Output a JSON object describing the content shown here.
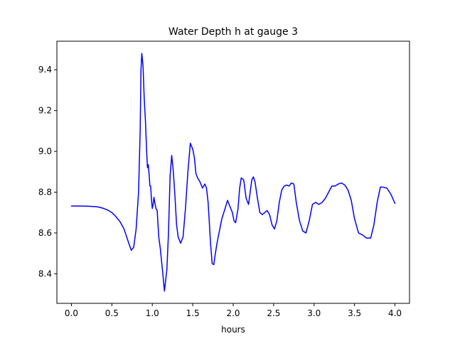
{
  "chart_data": {
    "type": "line",
    "title": "Water Depth h at gauge 3",
    "xlabel": "hours",
    "ylabel": "",
    "xlim": [
      -0.18,
      4.18
    ],
    "ylim": [
      8.255,
      9.54
    ],
    "xticks": [
      0.0,
      0.5,
      1.0,
      1.5,
      2.0,
      2.5,
      3.0,
      3.5,
      4.0
    ],
    "xtick_labels": [
      "0.0",
      "0.5",
      "1.0",
      "1.5",
      "2.0",
      "2.5",
      "3.0",
      "3.5",
      "4.0"
    ],
    "yticks": [
      8.4,
      8.6,
      8.8,
      9.0,
      9.2,
      9.4
    ],
    "ytick_labels": [
      "8.4",
      "8.6",
      "8.8",
      "9.0",
      "9.2",
      "9.4"
    ],
    "grid": false,
    "series": [
      {
        "color": "#0000ff",
        "x": [
          0.0,
          0.1,
          0.2,
          0.3,
          0.35,
          0.4,
          0.45,
          0.5,
          0.55,
          0.6,
          0.65,
          0.7,
          0.74,
          0.77,
          0.8,
          0.83,
          0.85,
          0.86,
          0.87,
          0.885,
          0.9,
          0.915,
          0.93,
          0.94,
          0.95,
          0.96,
          0.97,
          0.98,
          0.99,
          1.0,
          1.01,
          1.02,
          1.03,
          1.045,
          1.06,
          1.08,
          1.1,
          1.13,
          1.15,
          1.18,
          1.2,
          1.22,
          1.24,
          1.26,
          1.28,
          1.3,
          1.32,
          1.35,
          1.38,
          1.41,
          1.44,
          1.47,
          1.5,
          1.52,
          1.54,
          1.56,
          1.59,
          1.62,
          1.65,
          1.67,
          1.69,
          1.72,
          1.74,
          1.76,
          1.78,
          1.8,
          1.83,
          1.86,
          1.9,
          1.93,
          1.96,
          1.99,
          2.01,
          2.03,
          2.06,
          2.08,
          2.1,
          2.13,
          2.16,
          2.19,
          2.21,
          2.23,
          2.25,
          2.27,
          2.3,
          2.33,
          2.36,
          2.39,
          2.42,
          2.45,
          2.48,
          2.51,
          2.54,
          2.57,
          2.6,
          2.63,
          2.66,
          2.69,
          2.72,
          2.75,
          2.78,
          2.82,
          2.86,
          2.9,
          2.94,
          2.98,
          3.02,
          3.06,
          3.1,
          3.14,
          3.18,
          3.22,
          3.26,
          3.3,
          3.34,
          3.38,
          3.42,
          3.46,
          3.5,
          3.55,
          3.6,
          3.65,
          3.7,
          3.74,
          3.78,
          3.82,
          3.85,
          3.9,
          3.95,
          4.0
        ],
        "y": [
          8.732,
          8.732,
          8.731,
          8.729,
          8.726,
          8.72,
          8.712,
          8.7,
          8.68,
          8.656,
          8.62,
          8.56,
          8.515,
          8.53,
          8.62,
          8.8,
          9.1,
          9.4,
          9.48,
          9.42,
          9.26,
          9.15,
          9.0,
          8.92,
          8.935,
          8.89,
          8.83,
          8.83,
          8.76,
          8.72,
          8.74,
          8.775,
          8.75,
          8.72,
          8.71,
          8.58,
          8.52,
          8.4,
          8.315,
          8.42,
          8.6,
          8.88,
          8.98,
          8.9,
          8.78,
          8.64,
          8.58,
          8.55,
          8.58,
          8.72,
          8.9,
          9.04,
          9.01,
          8.97,
          8.89,
          8.87,
          8.85,
          8.82,
          8.84,
          8.82,
          8.75,
          8.55,
          8.45,
          8.445,
          8.5,
          8.55,
          8.61,
          8.67,
          8.72,
          8.76,
          8.73,
          8.7,
          8.66,
          8.65,
          8.72,
          8.82,
          8.87,
          8.86,
          8.77,
          8.74,
          8.8,
          8.86,
          8.875,
          8.85,
          8.77,
          8.7,
          8.69,
          8.7,
          8.71,
          8.69,
          8.64,
          8.62,
          8.66,
          8.75,
          8.81,
          8.83,
          8.835,
          8.83,
          8.845,
          8.84,
          8.75,
          8.66,
          8.61,
          8.6,
          8.66,
          8.74,
          8.75,
          8.74,
          8.75,
          8.77,
          8.8,
          8.83,
          8.83,
          8.84,
          8.845,
          8.835,
          8.81,
          8.76,
          8.67,
          8.6,
          8.59,
          8.575,
          8.575,
          8.64,
          8.75,
          8.825,
          8.825,
          8.82,
          8.79,
          8.745
        ]
      }
    ]
  }
}
